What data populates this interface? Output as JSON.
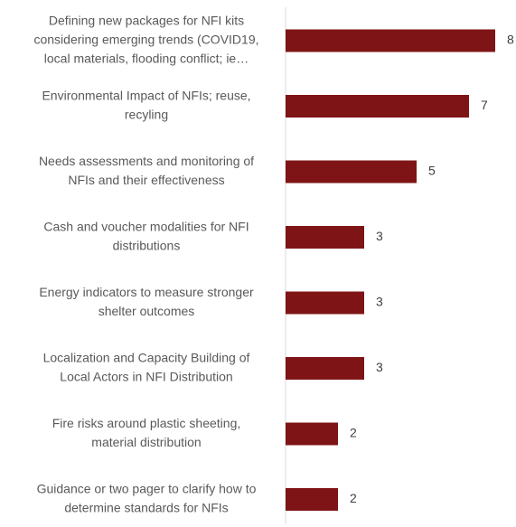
{
  "chart_data": {
    "type": "bar",
    "orientation": "horizontal",
    "categories": [
      [
        "Defining new packages for NFI kits",
        "considering emerging trends (COVID19,",
        "local materials, flooding conflict; ie…"
      ],
      [
        "Environmental Impact of NFIs; reuse,",
        "recyling"
      ],
      [
        "Needs assessments and monitoring of",
        "NFIs and their effectiveness"
      ],
      [
        "Cash and voucher modalities for NFI",
        "distributions"
      ],
      [
        "Energy indicators to measure stronger",
        "shelter outcomes"
      ],
      [
        "Localization and Capacity Building of",
        "Local Actors in NFI Distribution"
      ],
      [
        "Fire risks around plastic sheeting,",
        "material distribution"
      ],
      [
        "Guidance or two pager to clarify how to",
        "determine standards for NFIs"
      ]
    ],
    "values": [
      8,
      7,
      5,
      3,
      3,
      3,
      2,
      2
    ],
    "data_labels": [
      "8",
      "7",
      "5",
      "3",
      "3",
      "3",
      "2",
      "2"
    ],
    "xlim": [
      0,
      8.8
    ],
    "bar_color": "#7f1416",
    "axis_color": "#d9d9d9",
    "grid": false,
    "legend": "none"
  }
}
